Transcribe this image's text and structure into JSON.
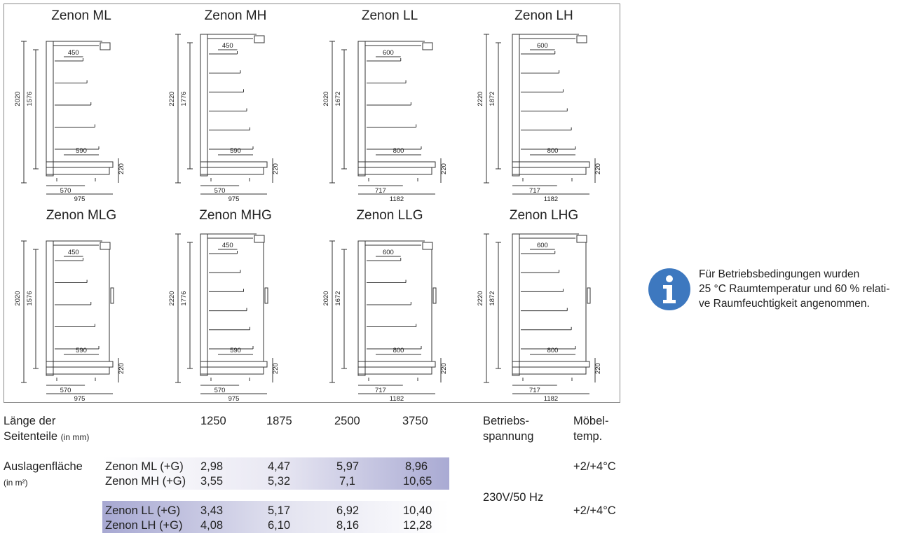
{
  "models": [
    {
      "title": "Zenon ML",
      "height_total": "2020",
      "height_inner": "1576",
      "shelf_top": "450",
      "shelf_bottom": "590",
      "base": "570",
      "depth": "975",
      "foot": "220"
    },
    {
      "title": "Zenon MH",
      "height_total": "2220",
      "height_inner": "1776",
      "shelf_top": "450",
      "shelf_bottom": "590",
      "base": "570",
      "depth": "975",
      "foot": "220"
    },
    {
      "title": "Zenon LL",
      "height_total": "2020",
      "height_inner": "1672",
      "shelf_top": "600",
      "shelf_bottom": "800",
      "base": "717",
      "depth": "1182",
      "foot": "220"
    },
    {
      "title": "Zenon LH",
      "height_total": "2220",
      "height_inner": "1872",
      "shelf_top": "600",
      "shelf_bottom": "800",
      "base": "717",
      "depth": "1182",
      "foot": "220"
    },
    {
      "title": "Zenon MLG",
      "height_total": "2020",
      "height_inner": "1576",
      "shelf_top": "450",
      "shelf_bottom": "590",
      "base": "570",
      "depth": "975",
      "foot": "220"
    },
    {
      "title": "Zenon MHG",
      "height_total": "2220",
      "height_inner": "1776",
      "shelf_top": "450",
      "shelf_bottom": "590",
      "base": "570",
      "depth": "975",
      "foot": "220"
    },
    {
      "title": "Zenon LLG",
      "height_total": "2020",
      "height_inner": "1672",
      "shelf_top": "600",
      "shelf_bottom": "800",
      "base": "717",
      "depth": "1182",
      "foot": "220"
    },
    {
      "title": "Zenon LHG",
      "height_total": "2220",
      "height_inner": "1872",
      "shelf_top": "600",
      "shelf_bottom": "800",
      "base": "717",
      "depth": "1182",
      "foot": "220"
    }
  ],
  "info": {
    "text": "Für Betriebsbedingungen wurden\n25 °C Raumtemperatur und 60 % relati-\nve Raumfeuchtigkeit angenommen."
  },
  "table": {
    "length_label": "Länge der",
    "length_label2": "Seitenteile",
    "length_unit": "(in mm)",
    "lengths": [
      "1250",
      "1875",
      "2500",
      "3750"
    ],
    "voltage_header": "Betriebs-",
    "voltage_header2": "spannung",
    "temp_header": "Möbel-",
    "temp_header2": "temp.",
    "area_label": "Auslagenfläche",
    "area_unit": "(in m²)",
    "rows": [
      {
        "model": "Zenon ML (+G)",
        "values": [
          "2,98",
          "4,47",
          "5,97",
          "8,96"
        ]
      },
      {
        "model": "Zenon MH (+G)",
        "values": [
          "3,55",
          "5,32",
          "7,1",
          "10,65"
        ]
      },
      {
        "model": "Zenon LL (+G)",
        "values": [
          "3,43",
          "5,17",
          "6,92",
          "10,40"
        ]
      },
      {
        "model": "Zenon LH (+G)",
        "values": [
          "4,08",
          "6,10",
          "8,16",
          "12,28"
        ]
      }
    ],
    "voltage": "230V/50 Hz",
    "temp_group1": "+2/+4°C",
    "temp_group2": "+2/+4°C"
  }
}
